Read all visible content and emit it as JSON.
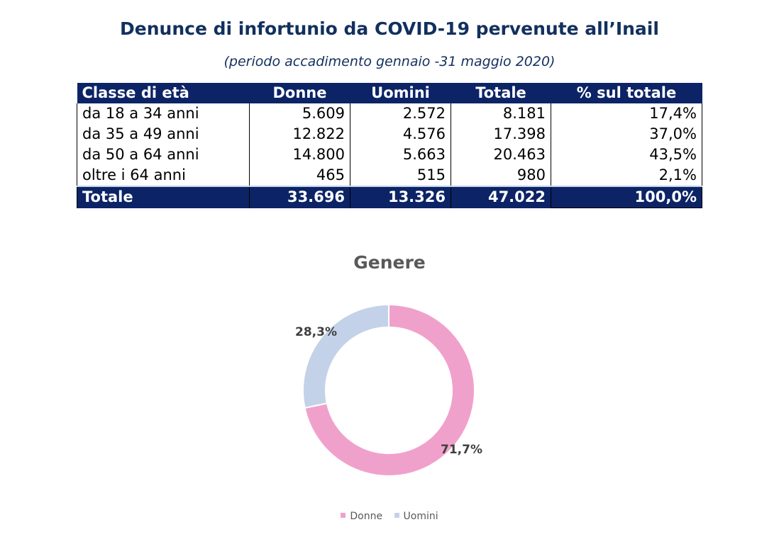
{
  "header": {
    "title": "Denunce di infortunio da COVID-19 pervenute all’Inail",
    "subtitle": "(periodo accadimento gennaio -31 maggio 2020)"
  },
  "table": {
    "columns": [
      "Classe di età",
      "Donne",
      "Uomini",
      "Totale",
      "% sul totale"
    ],
    "rows": [
      [
        "da 18 a 34 anni",
        "5.609",
        "2.572",
        "8.181",
        "17,4%"
      ],
      [
        "da 35 a 49 anni",
        "12.822",
        "4.576",
        "17.398",
        "37,0%"
      ],
      [
        "da 50 a 64 anni",
        "14.800",
        "5.663",
        "20.463",
        "43,5%"
      ],
      [
        "oltre i 64 anni",
        "465",
        "515",
        "980",
        "2,1%"
      ]
    ],
    "total": [
      "Totale",
      "33.696",
      "13.326",
      "47.022",
      "100,0%"
    ]
  },
  "chart_data": {
    "type": "pie",
    "title": "Genere",
    "donut": true,
    "slices": [
      {
        "name": "Donne",
        "value": 71.7,
        "label": "71,7%",
        "color": "#f0a1cb"
      },
      {
        "name": "Uomini",
        "value": 28.3,
        "label": "28,3%",
        "color": "#c3d2e8"
      }
    ],
    "legend": "bottom",
    "start_angle": "12 o'clock",
    "direction": "clockwise"
  }
}
